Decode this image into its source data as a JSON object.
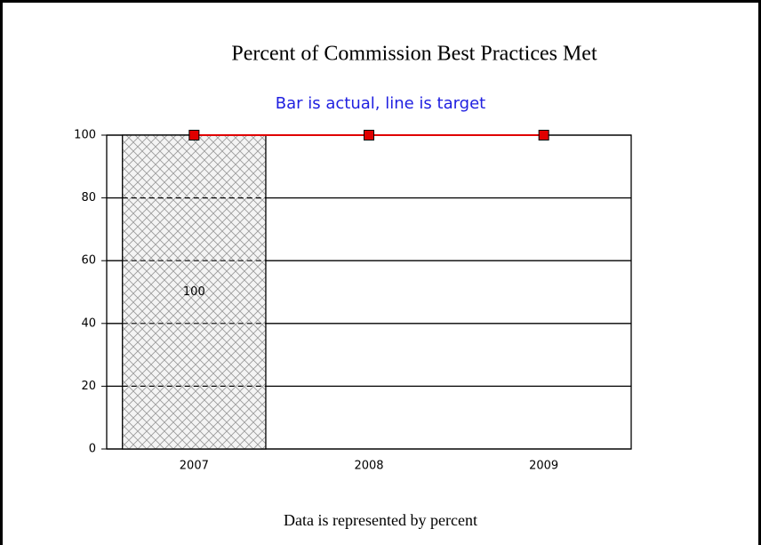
{
  "chart_data": {
    "type": "bar-line",
    "title": "Percent of Commission Best Practices Met",
    "subtitle": "Bar is actual, line is target",
    "footer": "Data is represented by percent",
    "categories": [
      "2007",
      "2008",
      "2009"
    ],
    "series": [
      {
        "type": "bar",
        "color": "#999999",
        "values": [
          100,
          null,
          null
        ]
      },
      {
        "type": "line",
        "color": "#e00000",
        "values": [
          100,
          100,
          100
        ]
      }
    ],
    "ylim": [
      0,
      100
    ],
    "yticks": [
      0,
      20,
      40,
      60,
      80,
      100
    ],
    "grid": true
  }
}
